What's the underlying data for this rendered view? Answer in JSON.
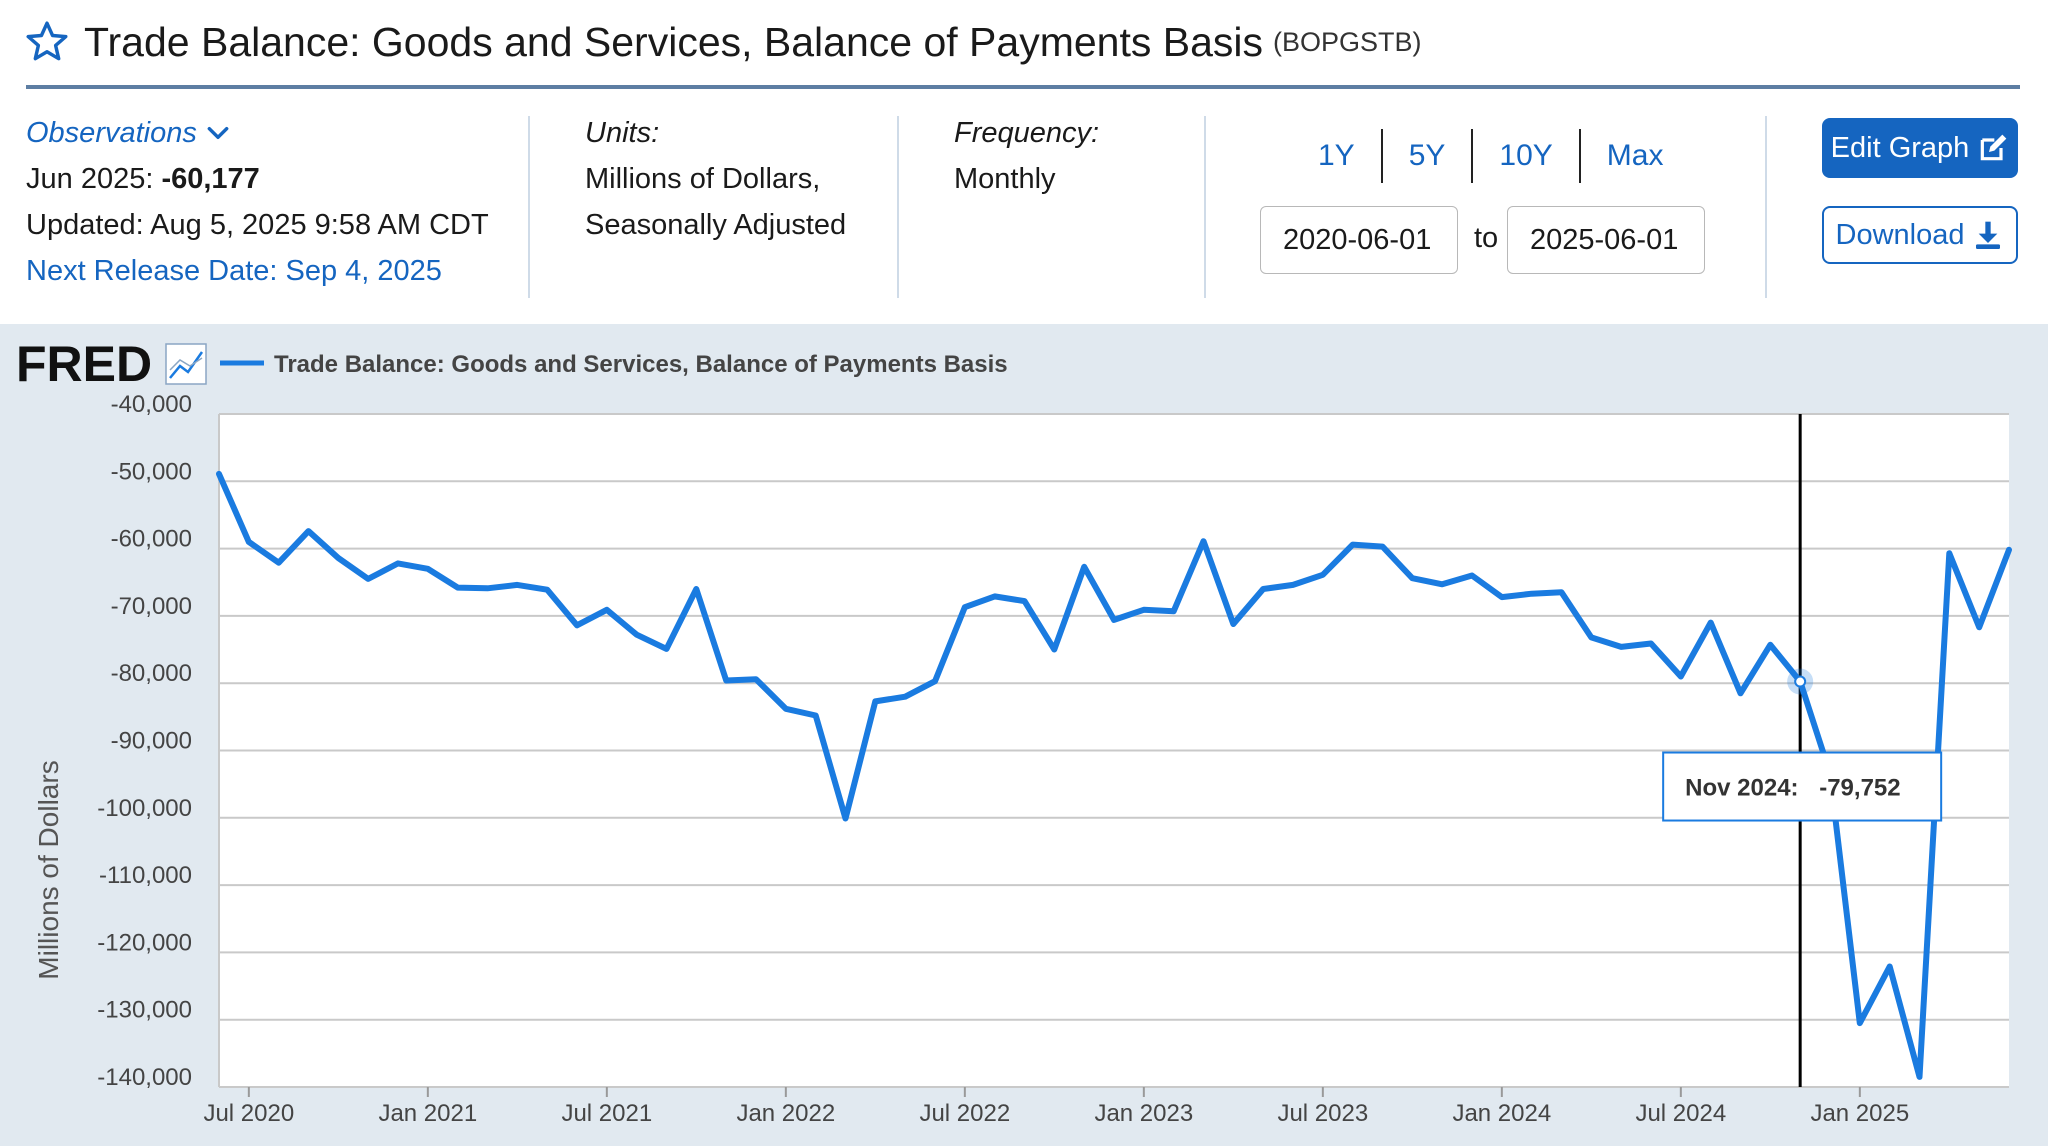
{
  "header": {
    "title": "Trade Balance: Goods and Services, Balance of Payments Basis",
    "series_id": "(BOPGSTB)"
  },
  "meta": {
    "observations_label": "Observations",
    "observation_date": "Jun 2025:",
    "observation_value": "-60,177",
    "updated": "Updated: Aug 5, 2025 9:58 AM CDT",
    "next_release": "Next Release Date: Sep 4, 2025",
    "units_label": "Units:",
    "units_line1": "Millions of Dollars,",
    "units_line2": "Seasonally Adjusted",
    "frequency_label": "Frequency:",
    "frequency_value": "Monthly"
  },
  "range": {
    "buttons": [
      "1Y",
      "5Y",
      "10Y",
      "Max"
    ],
    "start": "2020-06-01",
    "end": "2025-06-01",
    "to_label": "to"
  },
  "actions": {
    "edit_label": "Edit Graph",
    "download_label": "Download"
  },
  "chart_data": {
    "type": "line",
    "logo": "FRED",
    "legend": "Trade Balance: Goods and Services, Balance of Payments Basis",
    "ylabel": "Millions of Dollars",
    "xlabel": "",
    "ylim": [
      -140000,
      -40000
    ],
    "yticks": [
      "-40,000",
      "-50,000",
      "-60,000",
      "-70,000",
      "-80,000",
      "-90,000",
      "-100,000",
      "-110,000",
      "-120,000",
      "-130,000",
      "-140,000"
    ],
    "xticks": [
      "Jul 2020",
      "Jan 2021",
      "Jul 2021",
      "Jan 2022",
      "Jul 2022",
      "Jan 2023",
      "Jul 2023",
      "Jan 2024",
      "Jul 2024",
      "Jan 2025"
    ],
    "grid": true,
    "line_color": "#1a7be0",
    "x": [
      "2020-06",
      "2020-07",
      "2020-08",
      "2020-09",
      "2020-10",
      "2020-11",
      "2020-12",
      "2021-01",
      "2021-02",
      "2021-03",
      "2021-04",
      "2021-05",
      "2021-06",
      "2021-07",
      "2021-08",
      "2021-09",
      "2021-10",
      "2021-11",
      "2021-12",
      "2022-01",
      "2022-02",
      "2022-03",
      "2022-04",
      "2022-05",
      "2022-06",
      "2022-07",
      "2022-08",
      "2022-09",
      "2022-10",
      "2022-11",
      "2022-12",
      "2023-01",
      "2023-02",
      "2023-03",
      "2023-04",
      "2023-05",
      "2023-06",
      "2023-07",
      "2023-08",
      "2023-09",
      "2023-10",
      "2023-11",
      "2023-12",
      "2024-01",
      "2024-02",
      "2024-03",
      "2024-04",
      "2024-05",
      "2024-06",
      "2024-07",
      "2024-08",
      "2024-09",
      "2024-10",
      "2024-11",
      "2024-12",
      "2025-01",
      "2025-02",
      "2025-03",
      "2025-04",
      "2025-05",
      "2025-06"
    ],
    "series": [
      {
        "name": "Trade Balance: Goods and Services, Balance of Payments Basis",
        "values": [
          -48900,
          -59000,
          -62100,
          -57400,
          -61400,
          -64500,
          -62200,
          -63000,
          -65800,
          -65900,
          -65400,
          -66100,
          -71400,
          -69100,
          -72800,
          -74900,
          -66000,
          -79600,
          -79400,
          -83800,
          -84800,
          -100100,
          -82700,
          -82000,
          -79700,
          -68700,
          -67100,
          -67800,
          -75000,
          -62700,
          -70600,
          -69100,
          -69300,
          -58900,
          -71200,
          -66000,
          -65400,
          -63900,
          -59400,
          -59700,
          -64400,
          -65300,
          -64000,
          -67200,
          -66700,
          -66500,
          -73200,
          -74600,
          -74100,
          -79000,
          -71000,
          -81500,
          -74300,
          -79752,
          -93400,
          -130500,
          -122100,
          -138500,
          -60700,
          -71700,
          -60177
        ]
      }
    ],
    "tooltip": {
      "label": "Nov 2024:",
      "value": "-79,752"
    }
  }
}
